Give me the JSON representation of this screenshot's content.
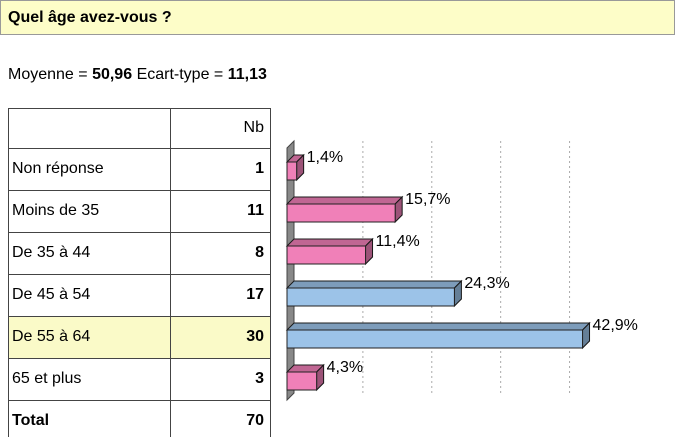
{
  "title": "Quel âge avez-vous ?",
  "stats": {
    "mean_label": "Moyenne =",
    "mean": "50,96",
    "sd_label": "Ecart-type =",
    "sd": "11,13"
  },
  "table": {
    "header": "Nb",
    "rows": [
      [
        "Non réponse",
        1
      ],
      [
        "Moins de 35",
        11
      ],
      [
        "De 35 à 44",
        8
      ],
      [
        "De 45 à 54",
        17
      ],
      [
        "De 55 à 64",
        30
      ],
      [
        "65 et plus",
        3
      ]
    ],
    "total": [
      "Total",
      70
    ],
    "highlight_row": 4
  },
  "chart_data": {
    "type": "bar",
    "orientation": "horizontal",
    "values": [
      1.4,
      15.7,
      11.4,
      24.3,
      42.9,
      4.3
    ],
    "value_labels": [
      "1,4%",
      "15,7%",
      "11,4%",
      "24,3%",
      "42,9%",
      "4,3%"
    ],
    "colors": [
      "#f080b8",
      "#f080b8",
      "#f080b8",
      "#9cc3e8",
      "#9cc3e8",
      "#f080b8"
    ],
    "xlim": [
      0,
      45
    ],
    "xticks": [
      10,
      20,
      30,
      40
    ],
    "grid": true
  }
}
